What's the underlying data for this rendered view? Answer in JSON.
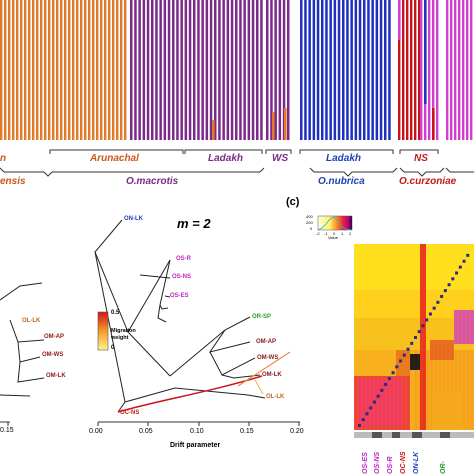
{
  "panel_a": {
    "region_labels": [
      {
        "text": "n",
        "color": "#c8571f"
      },
      {
        "text": "Arunachal",
        "color": "#c8571f"
      },
      {
        "text": "Ladakh",
        "color": "#7a2a86"
      },
      {
        "text": "WS",
        "color": "#7a2a86"
      },
      {
        "text": "Ladakh",
        "color": "#1e3fb5"
      },
      {
        "text": "NS",
        "color": "#c21b1b"
      }
    ],
    "species_labels": [
      {
        "text": "ensis",
        "color": "#c8571f"
      },
      {
        "text": "O.macrotis",
        "color": "#7a2a86"
      },
      {
        "text": "O.nubrica",
        "color": "#1e3fb5"
      },
      {
        "text": "O.curzoniae",
        "color": "#c21b1b"
      }
    ],
    "bar_colors": {
      "orange": "#e07b2a",
      "purple": "#7b2a8a",
      "blue": "#1f2fbf",
      "red": "#c8121a",
      "magenta": "#d23fd0"
    }
  },
  "panel_b": {
    "title_m": "m = 2",
    "left_labels": [
      {
        "text": "OL-LK",
        "color": "#c0681c"
      },
      {
        "text": "OM-AP",
        "color": "#8b1a1a"
      },
      {
        "text": "OM-WS",
        "color": "#8b1a1a"
      },
      {
        "text": "OM-LK",
        "color": "#8b1a1a"
      }
    ],
    "left_tick": "0.15",
    "tips": [
      {
        "text": "ON-LK",
        "color": "#1e3fb5"
      },
      {
        "text": "OS-R",
        "color": "#c026c0"
      },
      {
        "text": "OS-NS",
        "color": "#c026c0"
      },
      {
        "text": "OS-ES",
        "color": "#c026c0"
      },
      {
        "text": "OR-SP",
        "color": "#2aa02a"
      },
      {
        "text": "OM-AP",
        "color": "#8b1a1a"
      },
      {
        "text": "OM-WS",
        "color": "#8b1a1a"
      },
      {
        "text": "OM-LK",
        "color": "#8b1a1a"
      },
      {
        "text": "OL-LK",
        "color": "#c0681c"
      },
      {
        "text": "OC-NS",
        "color": "#c21b1b"
      }
    ],
    "legend_title": "Migration\nweight",
    "legend_max": "0.5",
    "legend_min": "0",
    "x_ticks": [
      "0.00",
      "0.05",
      "0.10",
      "0.15",
      "0.20"
    ],
    "xlabel": "Drift parameter"
  },
  "panel_c": {
    "label": "(c)",
    "colorkey_ticks_y": [
      "0",
      "200",
      "400"
    ],
    "colorkey_ticks_x": [
      "-2",
      "-1",
      "0",
      "1",
      "2"
    ],
    "colorkey_label": "Value",
    "bottom_labels": [
      {
        "text": "OS-ES",
        "color": "#c026c0"
      },
      {
        "text": "OS-NS",
        "color": "#c026c0"
      },
      {
        "text": "OS-R",
        "color": "#c026c0"
      },
      {
        "text": "OC-NS",
        "color": "#c21b1b"
      },
      {
        "text": "ON-LK",
        "color": "#1e3fb5"
      },
      {
        "text": "OR-",
        "color": "#2aa02a"
      }
    ]
  }
}
